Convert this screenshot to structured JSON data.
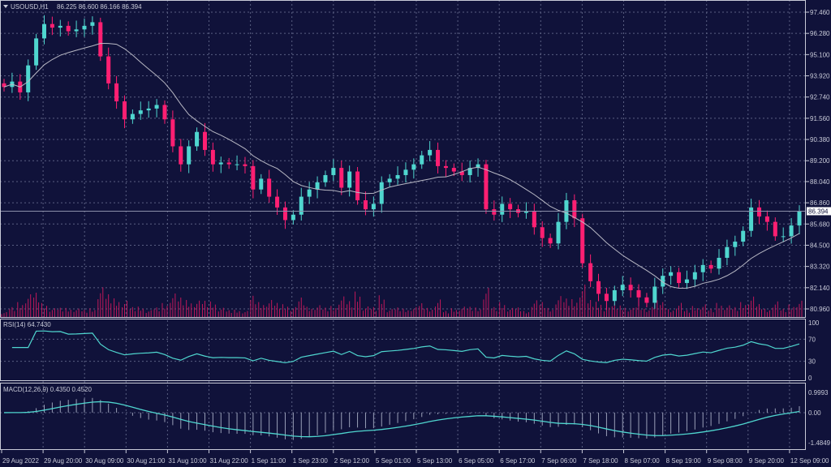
{
  "header": {
    "symbol_label": "USOUSD,H1",
    "ohlc_label": "86.225 86.600 86.166 86.394"
  },
  "current_price_label": "86.394",
  "colors": {
    "background": "#10123a",
    "bull": "#4fd6cf",
    "bear": "#ff1f72",
    "ma": "#b8b8c4",
    "indicator": "#4fd6cf",
    "volume": "#c0185a",
    "grid": "#5a5f82"
  },
  "chart_data": [
    {
      "type": "candlestick",
      "title": "USOUSD,H1",
      "ylim": [
        80.96,
        97.46
      ],
      "y_ticks": [
        "97.460",
        "96.280",
        "95.100",
        "93.920",
        "92.740",
        "91.560",
        "90.380",
        "89.200",
        "88.040",
        "86.860",
        "85.680",
        "84.500",
        "83.320",
        "82.140",
        "80.960"
      ],
      "x_ticks": [
        "29 Aug 2022",
        "29 Aug 20:00",
        "30 Aug 09:00",
        "30 Aug 21:00",
        "31 Aug 10:00",
        "31 Aug 22:00",
        "1 Sep 11:00",
        "1 Sep 23:00",
        "2 Sep 12:00",
        "5 Sep 01:00",
        "5 Sep 13:00",
        "6 Sep 05:00",
        "6 Sep 17:00",
        "7 Sep 06:00",
        "7 Sep 18:00",
        "8 Sep 07:00",
        "8 Sep 19:00",
        "9 Sep 08:00",
        "9 Sep 20:00",
        "12 Sep 09:00"
      ],
      "closes": [
        93.3,
        93.6,
        93.0,
        94.5,
        96.0,
        96.8,
        96.6,
        96.7,
        96.4,
        96.5,
        96.7,
        96.9,
        95.0,
        93.5,
        92.5,
        91.5,
        91.8,
        92.0,
        92.1,
        92.3,
        91.5,
        90.0,
        89.0,
        90.0,
        90.8,
        89.8,
        89.0,
        89.1,
        89.0,
        89.0,
        88.9,
        87.6,
        88.2,
        87.2,
        86.6,
        85.9,
        86.2,
        87.2,
        87.6,
        88.0,
        88.4,
        88.8,
        87.7,
        88.6,
        87.0,
        86.5,
        86.8,
        88.0,
        88.2,
        88.4,
        88.7,
        89.0,
        89.5,
        89.8,
        88.9,
        88.8,
        88.6,
        88.4,
        88.8,
        89.0,
        86.5,
        86.2,
        86.8,
        86.5,
        86.3,
        86.4,
        85.5,
        84.9,
        84.6,
        85.8,
        87.0,
        86.0,
        83.5,
        82.5,
        81.8,
        81.4,
        82.0,
        82.3,
        82.0,
        81.6,
        81.3,
        82.2,
        82.8,
        83.0,
        82.4,
        82.6,
        83.0,
        83.4,
        83.2,
        83.8,
        84.4,
        84.7,
        85.3,
        86.6,
        86.1,
        85.8,
        85.0,
        85.0,
        85.6,
        86.394
      ],
      "moving_average_period": 12
    },
    {
      "type": "line",
      "title": "RSI(14) 64.7430",
      "ylim": [
        0,
        100
      ],
      "y_ticks": [
        "100",
        "70",
        "30",
        "0"
      ],
      "period": 14
    },
    {
      "type": "bar",
      "title": "MACD(12,26,9) 0.4350 0.4520",
      "ylim": [
        -1.4849,
        0.9993
      ],
      "y_ticks": [
        "0.9993",
        "0.00",
        "-1.4849"
      ],
      "params": [
        12,
        26,
        9
      ]
    }
  ]
}
